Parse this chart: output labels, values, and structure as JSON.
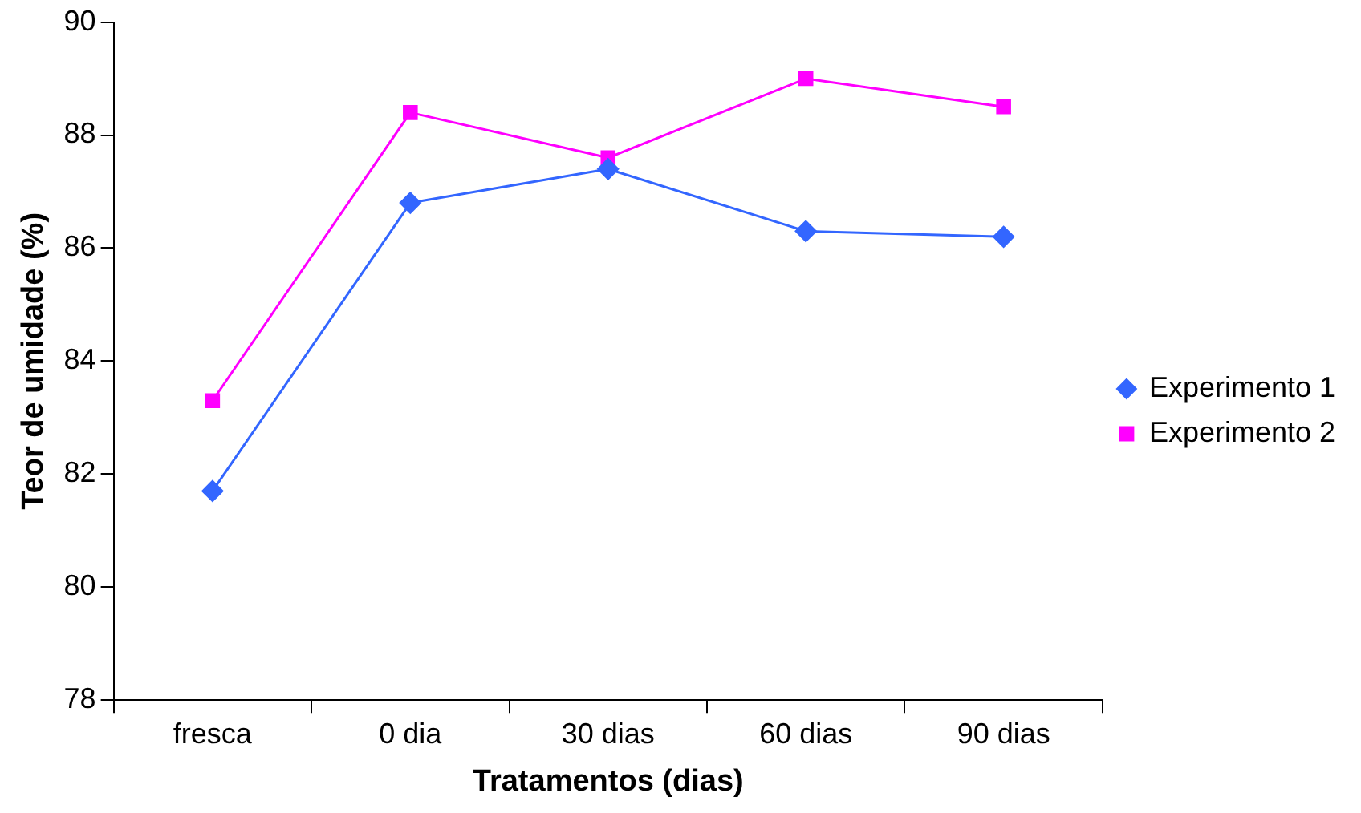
{
  "chart_data": {
    "type": "line",
    "xlabel": "Tratamentos (dias)",
    "ylabel": "Teor de umidade (%)",
    "categories": [
      "fresca",
      "0 dia",
      "30 dias",
      "60 dias",
      "90 dias"
    ],
    "series": [
      {
        "name": "Experimento 1",
        "color": "#3366ff",
        "marker": "diamond",
        "values": [
          81.7,
          86.8,
          87.4,
          86.3,
          86.2
        ]
      },
      {
        "name": "Experimento 2",
        "color": "#ff00ff",
        "marker": "square",
        "values": [
          83.3,
          88.4,
          87.6,
          89.0,
          88.5
        ]
      }
    ],
    "ylim": [
      78,
      90
    ],
    "yticks": [
      78,
      80,
      82,
      84,
      86,
      88,
      90
    ],
    "grid": false,
    "legend": "right",
    "line_style": "solid"
  }
}
